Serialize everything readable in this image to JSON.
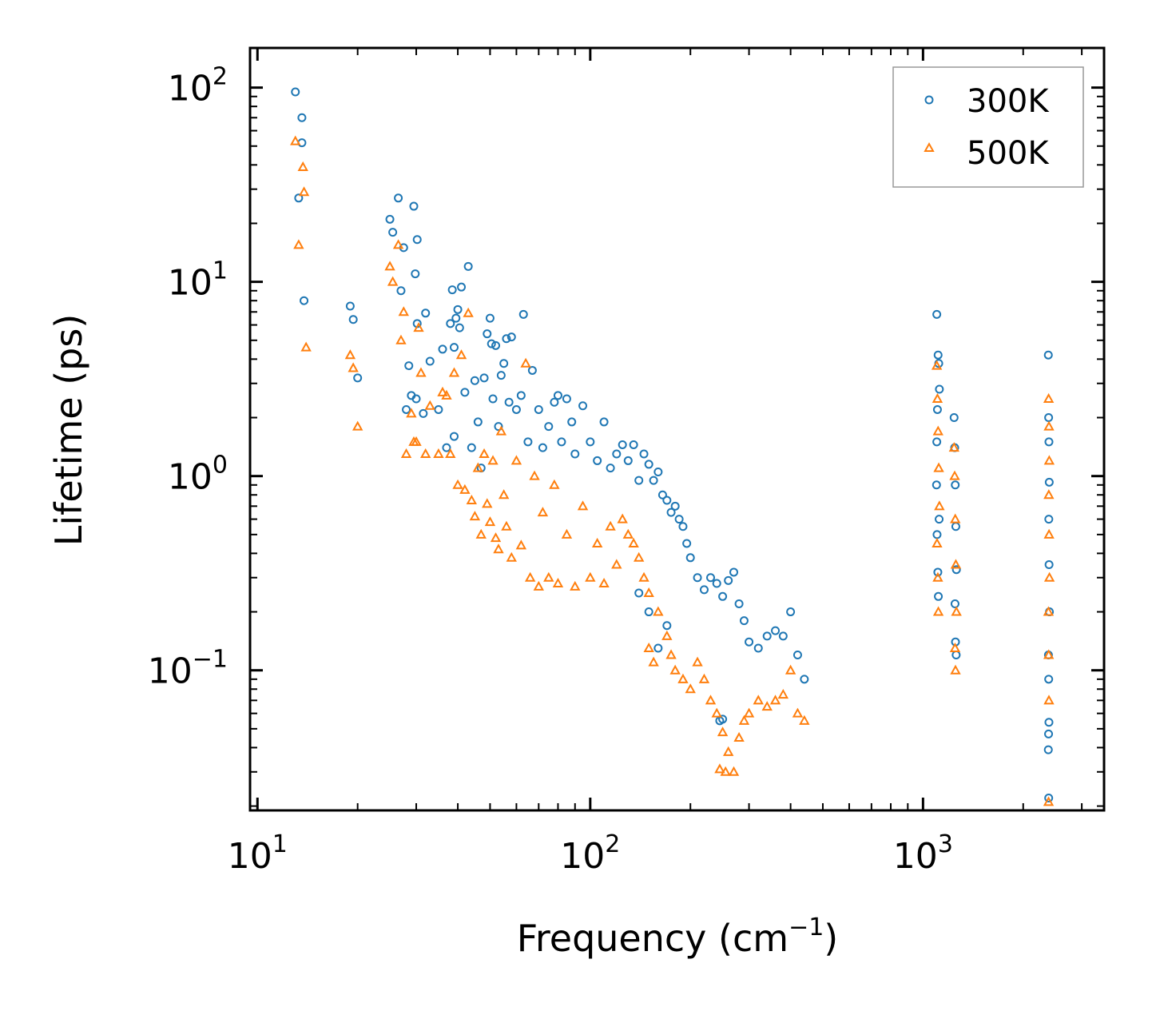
{
  "chart_data": {
    "type": "scatter",
    "title": "",
    "xlabel": "Frequency (cm",
    "xlabel_sup": "−1",
    "xlabel_suffix": ")",
    "ylabel": "Lifetime (ps)",
    "xscale": "log",
    "yscale": "log",
    "xlim": [
      9.5,
      3500
    ],
    "ylim": [
      0.019,
      160
    ],
    "x_ticks": [
      {
        "value": 10,
        "base": "10",
        "exp": "1"
      },
      {
        "value": 100,
        "base": "10",
        "exp": "2"
      },
      {
        "value": 1000,
        "base": "10",
        "exp": "3"
      }
    ],
    "y_ticks": [
      {
        "value": 0.1,
        "base": "10",
        "exp": "−1"
      },
      {
        "value": 1,
        "base": "10",
        "exp": "0"
      },
      {
        "value": 10,
        "base": "10",
        "exp": "1"
      },
      {
        "value": 100,
        "base": "10",
        "exp": "2"
      }
    ],
    "legend": {
      "position": "top-right",
      "entries": [
        "300K",
        "500K"
      ]
    },
    "series": [
      {
        "name": "300K",
        "color": "#1f77b4",
        "marker": "circle",
        "points": [
          [
            13.0,
            95
          ],
          [
            13.3,
            27
          ],
          [
            13.6,
            70
          ],
          [
            13.6,
            52
          ],
          [
            13.8,
            8
          ],
          [
            19,
            7.5
          ],
          [
            19.4,
            6.4
          ],
          [
            20,
            3.2
          ],
          [
            25,
            21
          ],
          [
            25.5,
            18
          ],
          [
            26.5,
            27
          ],
          [
            27,
            9
          ],
          [
            27.5,
            15
          ],
          [
            28,
            2.2
          ],
          [
            28.5,
            3.7
          ],
          [
            29,
            2.6
          ],
          [
            29.5,
            24.5
          ],
          [
            29.8,
            11
          ],
          [
            30,
            2.5
          ],
          [
            30.2,
            16.5
          ],
          [
            30.2,
            6.1
          ],
          [
            31.5,
            2.1
          ],
          [
            32,
            6.9
          ],
          [
            33,
            3.9
          ],
          [
            35,
            2.2
          ],
          [
            36,
            4.5
          ],
          [
            37,
            1.4
          ],
          [
            38,
            6.1
          ],
          [
            38.5,
            9.1
          ],
          [
            39,
            4.6
          ],
          [
            39,
            1.6
          ],
          [
            39.5,
            6.5
          ],
          [
            40,
            7.2
          ],
          [
            40.5,
            5.8
          ],
          [
            41,
            9.4
          ],
          [
            42,
            2.7
          ],
          [
            43,
            12
          ],
          [
            44,
            1.4
          ],
          [
            45,
            3.1
          ],
          [
            46,
            1.9
          ],
          [
            47,
            1.1
          ],
          [
            48,
            3.2
          ],
          [
            49,
            5.4
          ],
          [
            50,
            6.5
          ],
          [
            50.5,
            4.8
          ],
          [
            51,
            2.5
          ],
          [
            52,
            4.7
          ],
          [
            53,
            1.8
          ],
          [
            54,
            3.3
          ],
          [
            55,
            3.8
          ],
          [
            56,
            5.1
          ],
          [
            57,
            2.4
          ],
          [
            58,
            5.2
          ],
          [
            60,
            2.2
          ],
          [
            62,
            2.6
          ],
          [
            63,
            6.8
          ],
          [
            65,
            1.5
          ],
          [
            67,
            3.5
          ],
          [
            70,
            2.2
          ],
          [
            72,
            1.4
          ],
          [
            75,
            1.8
          ],
          [
            78,
            2.4
          ],
          [
            80,
            2.6
          ],
          [
            82,
            1.5
          ],
          [
            85,
            2.5
          ],
          [
            88,
            1.9
          ],
          [
            90,
            1.3
          ],
          [
            95,
            2.3
          ],
          [
            100,
            1.5
          ],
          [
            105,
            1.2
          ],
          [
            110,
            1.9
          ],
          [
            115,
            1.1
          ],
          [
            120,
            1.3
          ],
          [
            125,
            1.45
          ],
          [
            130,
            1.2
          ],
          [
            135,
            1.45
          ],
          [
            140,
            0.95
          ],
          [
            145,
            1.3
          ],
          [
            150,
            1.15
          ],
          [
            155,
            0.95
          ],
          [
            160,
            1.05
          ],
          [
            165,
            0.8
          ],
          [
            170,
            0.75
          ],
          [
            175,
            0.65
          ],
          [
            180,
            0.7
          ],
          [
            185,
            0.6
          ],
          [
            190,
            0.55
          ],
          [
            195,
            0.45
          ],
          [
            200,
            0.38
          ],
          [
            210,
            0.3
          ],
          [
            220,
            0.26
          ],
          [
            230,
            0.3
          ],
          [
            240,
            0.28
          ],
          [
            250,
            0.24
          ],
          [
            260,
            0.29
          ],
          [
            270,
            0.32
          ],
          [
            280,
            0.22
          ],
          [
            290,
            0.18
          ],
          [
            300,
            0.14
          ],
          [
            320,
            0.13
          ],
          [
            340,
            0.15
          ],
          [
            360,
            0.16
          ],
          [
            380,
            0.15
          ],
          [
            400,
            0.2
          ],
          [
            420,
            0.12
          ],
          [
            440,
            0.09
          ],
          [
            140,
            0.25
          ],
          [
            150,
            0.2
          ],
          [
            160,
            0.13
          ],
          [
            170,
            0.17
          ],
          [
            245,
            0.055
          ],
          [
            250,
            0.056
          ],
          [
            1100,
            6.8
          ],
          [
            1110,
            4.2
          ],
          [
            1115,
            3.8
          ],
          [
            1120,
            2.8
          ],
          [
            1105,
            2.2
          ],
          [
            1100,
            1.5
          ],
          [
            1098,
            0.9
          ],
          [
            1102,
            0.5
          ],
          [
            1108,
            0.32
          ],
          [
            1112,
            0.24
          ],
          [
            1118,
            0.6
          ],
          [
            1240,
            2.0
          ],
          [
            1245,
            1.4
          ],
          [
            1250,
            0.9
          ],
          [
            1255,
            0.55
          ],
          [
            1260,
            0.33
          ],
          [
            1248,
            0.22
          ],
          [
            1252,
            0.14
          ],
          [
            1258,
            0.12
          ],
          [
            2380,
            4.2
          ],
          [
            2385,
            2.0
          ],
          [
            2390,
            1.5
          ],
          [
            2395,
            0.93
          ],
          [
            2388,
            0.6
          ],
          [
            2392,
            0.35
          ],
          [
            2398,
            0.2
          ],
          [
            2382,
            0.12
          ],
          [
            2386,
            0.09
          ],
          [
            2390,
            0.054
          ],
          [
            2384,
            0.047
          ],
          [
            2380,
            0.039
          ],
          [
            2386,
            0.022
          ]
        ]
      },
      {
        "name": "500K",
        "color": "#ff7f0e",
        "marker": "triangle",
        "points": [
          [
            13.0,
            53
          ],
          [
            13.3,
            15.5
          ],
          [
            13.7,
            39
          ],
          [
            13.8,
            29
          ],
          [
            14,
            4.6
          ],
          [
            19,
            4.2
          ],
          [
            19.4,
            3.6
          ],
          [
            20,
            1.8
          ],
          [
            25,
            12
          ],
          [
            25.5,
            10
          ],
          [
            26.5,
            15.5
          ],
          [
            27,
            5
          ],
          [
            27.5,
            7
          ],
          [
            28,
            1.3
          ],
          [
            29,
            2.1
          ],
          [
            29.5,
            1.5
          ],
          [
            30,
            1.5
          ],
          [
            30.5,
            5.8
          ],
          [
            31,
            3.4
          ],
          [
            32,
            1.3
          ],
          [
            33,
            2.3
          ],
          [
            35,
            1.3
          ],
          [
            36,
            2.7
          ],
          [
            37,
            2.6
          ],
          [
            38,
            1.3
          ],
          [
            39,
            3.4
          ],
          [
            40,
            0.9
          ],
          [
            41,
            4.2
          ],
          [
            42,
            0.85
          ],
          [
            43,
            6.9
          ],
          [
            44,
            0.75
          ],
          [
            45,
            0.62
          ],
          [
            46,
            1.1
          ],
          [
            47,
            0.5
          ],
          [
            48,
            1.3
          ],
          [
            49,
            0.72
          ],
          [
            50,
            0.58
          ],
          [
            51,
            1.2
          ],
          [
            52,
            0.48
          ],
          [
            53,
            0.42
          ],
          [
            54,
            1.7
          ],
          [
            55,
            0.8
          ],
          [
            56,
            0.55
          ],
          [
            58,
            0.38
          ],
          [
            60,
            1.2
          ],
          [
            62,
            0.44
          ],
          [
            64,
            3.8
          ],
          [
            66,
            0.3
          ],
          [
            68,
            1.0
          ],
          [
            70,
            0.27
          ],
          [
            72,
            0.65
          ],
          [
            75,
            0.3
          ],
          [
            78,
            0.9
          ],
          [
            80,
            0.28
          ],
          [
            85,
            0.5
          ],
          [
            90,
            0.27
          ],
          [
            95,
            0.7
          ],
          [
            100,
            0.3
          ],
          [
            105,
            0.45
          ],
          [
            110,
            0.28
          ],
          [
            115,
            0.55
          ],
          [
            120,
            0.35
          ],
          [
            125,
            0.6
          ],
          [
            130,
            0.5
          ],
          [
            135,
            0.45
          ],
          [
            140,
            0.38
          ],
          [
            145,
            0.3
          ],
          [
            150,
            0.25
          ],
          [
            160,
            0.2
          ],
          [
            170,
            0.15
          ],
          [
            175,
            0.12
          ],
          [
            180,
            0.1
          ],
          [
            190,
            0.09
          ],
          [
            200,
            0.08
          ],
          [
            210,
            0.11
          ],
          [
            220,
            0.09
          ],
          [
            230,
            0.07
          ],
          [
            240,
            0.06
          ],
          [
            250,
            0.048
          ],
          [
            260,
            0.038
          ],
          [
            270,
            0.03
          ],
          [
            280,
            0.045
          ],
          [
            290,
            0.055
          ],
          [
            300,
            0.06
          ],
          [
            320,
            0.07
          ],
          [
            340,
            0.065
          ],
          [
            360,
            0.07
          ],
          [
            380,
            0.075
          ],
          [
            400,
            0.1
          ],
          [
            420,
            0.06
          ],
          [
            440,
            0.055
          ],
          [
            150,
            0.13
          ],
          [
            155,
            0.11
          ],
          [
            245,
            0.031
          ],
          [
            255,
            0.03
          ],
          [
            1100,
            3.7
          ],
          [
            1105,
            2.5
          ],
          [
            1110,
            1.7
          ],
          [
            1115,
            1.1
          ],
          [
            1120,
            0.7
          ],
          [
            1102,
            0.45
          ],
          [
            1108,
            0.3
          ],
          [
            1112,
            0.2
          ],
          [
            1240,
            1.4
          ],
          [
            1245,
            1.0
          ],
          [
            1250,
            0.6
          ],
          [
            1255,
            0.35
          ],
          [
            1260,
            0.2
          ],
          [
            1248,
            0.13
          ],
          [
            1252,
            0.1
          ],
          [
            2385,
            2.5
          ],
          [
            2390,
            1.8
          ],
          [
            2395,
            1.2
          ],
          [
            2388,
            0.8
          ],
          [
            2392,
            0.5
          ],
          [
            2398,
            0.3
          ],
          [
            2382,
            0.2
          ],
          [
            2386,
            0.12
          ],
          [
            2390,
            0.07
          ],
          [
            2384,
            0.021
          ]
        ]
      }
    ]
  }
}
